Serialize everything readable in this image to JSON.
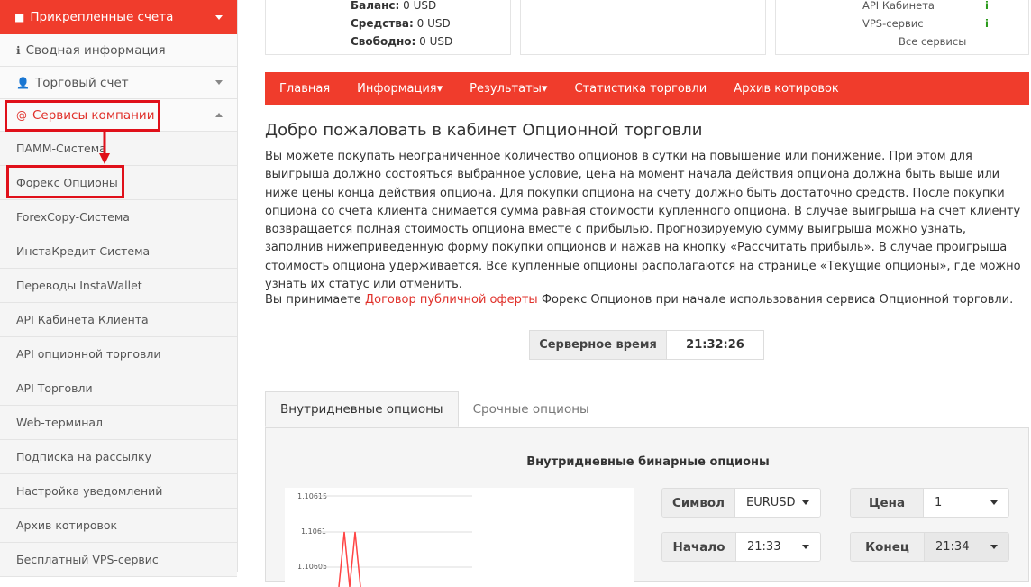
{
  "sidebar": {
    "header": "Прикрепленные счета",
    "items": [
      "Сводная информация",
      "Торговый счет",
      "Сервисы компании"
    ],
    "subitems": [
      "ПАММ-Система",
      "Форекс Опционы",
      "ForexCopy-Система",
      "ИнстаКредит-Система",
      "Переводы InstaWallet",
      "API Кабинета Клиента",
      "API опционной торговли",
      "API Торговли",
      "Web-терминал",
      "Подписка на рассылку",
      "Настройка уведомлений",
      "Архив котировок",
      "Бесплатный VPS-сервис"
    ]
  },
  "balance": {
    "rows": [
      {
        "label": "Баланс:",
        "value": "0 USD"
      },
      {
        "label": "Средства:",
        "value": "0 USD"
      },
      {
        "label": "Свободно:",
        "value": "0 USD"
      }
    ]
  },
  "services": {
    "rows": [
      "API Кабинета",
      "VPS-сервис"
    ],
    "all": "Все сервисы"
  },
  "nav": [
    "Главная",
    "Информация▾",
    "Результаты▾",
    "Статистика торговли",
    "Архив котировок"
  ],
  "heading": "Добро пожаловать в кабинет Опционной торговли",
  "paragraph": "Вы можете покупать неограниченное количество опционов в сутки на повышение или понижение. При этом для выигрыша должно состояться выбранное условие, цена на момент начала действия опциона должна быть выше или ниже цены конца действия опциона. Для покупки опциона на счету должно быть достаточно средств. После покупки опциона со счета клиента снимается сумма равная стоимости купленного опциона. В случае выигрыша на счет клиенту возвращается полная стоимость опциона вместе с прибылью. Прогнозируемую сумму выигрыша можно узнать, заполнив нижеприведенную форму покупки опционов и нажав на кнопку «Рассчитать прибыль». В случае проигрыша стоимость опциона удерживается. Все купленные опционы располагаются на странице «Текущие опционы», где можно узнать их статус или отменить.",
  "offer": {
    "before": "Вы принимаете ",
    "link": "Договор публичной оферты",
    "after": " Форекс Опционов при начале использования сервиса Опционной торговли."
  },
  "server_time": {
    "label": "Серверное время",
    "value": "21:32:26"
  },
  "tabs": [
    "Внутридневные опционы",
    "Срочные опционы"
  ],
  "panel_title": "Внутридневные бинарные опционы",
  "chart_ticks": [
    "1.10615",
    "1.1061",
    "1.10605"
  ],
  "form": {
    "symbol_label": "Символ",
    "symbol": "EURUSD",
    "price_label": "Цена",
    "price": "1",
    "start_label": "Начало",
    "start": "21:33",
    "end_label": "Конец",
    "end": "21:34"
  },
  "colors": {
    "accent": "#f03c2c",
    "ok": "#2a9a1a"
  }
}
